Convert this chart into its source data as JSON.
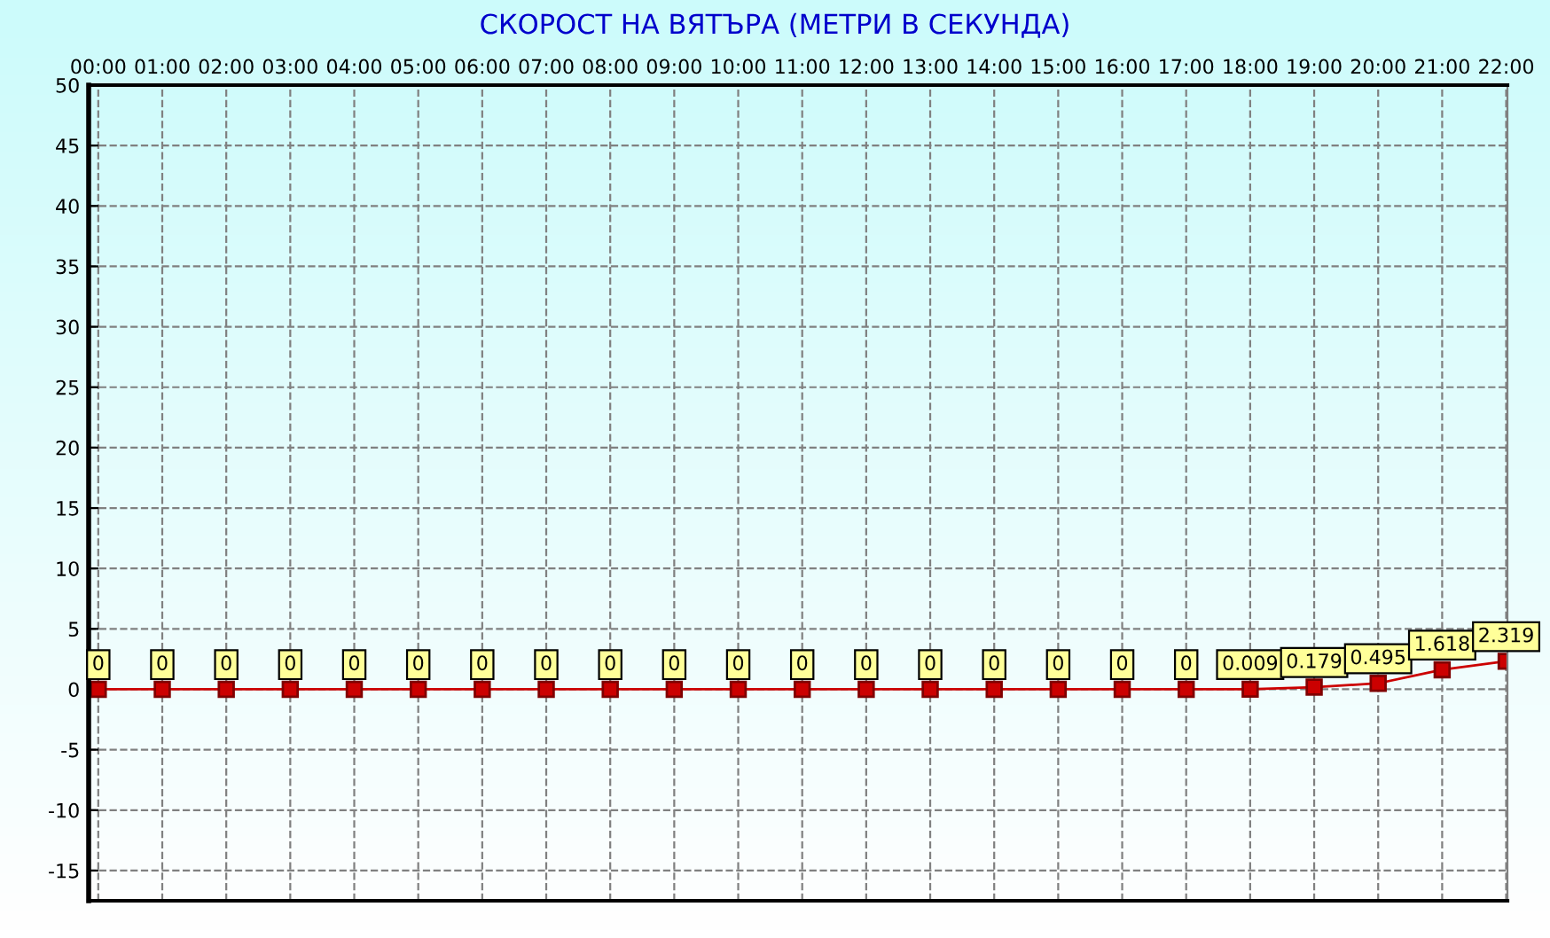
{
  "chart_data": {
    "type": "line",
    "title": "СКОРОСТ НА ВЯТЪРА (МЕТРИ В СЕКУНДА)",
    "categories": [
      "00:00",
      "01:00",
      "02:00",
      "03:00",
      "04:00",
      "05:00",
      "06:00",
      "07:00",
      "08:00",
      "09:00",
      "10:00",
      "11:00",
      "12:00",
      "13:00",
      "14:00",
      "15:00",
      "16:00",
      "17:00",
      "18:00",
      "19:00",
      "20:00",
      "21:00",
      "22:00"
    ],
    "series": [
      {
        "color": "#cc0000",
        "values": [
          0,
          0,
          0,
          0,
          0,
          0,
          0,
          0,
          0,
          0,
          0,
          0,
          0,
          0,
          0,
          0,
          0,
          0,
          0.009,
          0.179,
          0.495,
          1.618,
          2.319
        ]
      }
    ],
    "data_labels": true,
    "marker": "square",
    "line_style": "solid",
    "ylim": [
      -17.5,
      50
    ],
    "yticks": [
      -15,
      -10,
      -5,
      0,
      5,
      10,
      15,
      20,
      25,
      30,
      35,
      40,
      45,
      50
    ],
    "grid": true,
    "legend": false
  }
}
